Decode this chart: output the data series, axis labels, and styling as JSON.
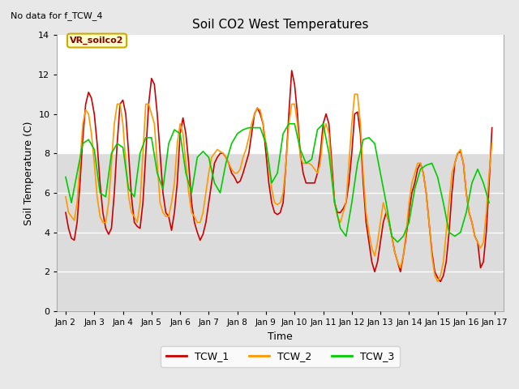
{
  "title": "Soil CO2 West Temperatures",
  "xlabel": "Time",
  "ylabel": "Soil Temperature (C)",
  "note": "No data for f_TCW_4",
  "annotation": "VR_soilco2",
  "ylim": [
    0,
    14
  ],
  "fig_bg_color": "#e8e8e8",
  "plot_bg_color": "#e8e8e8",
  "upper_bg_color": "#ffffff",
  "lower_bg_color": "#dcdcdc",
  "grid_color": "#ffffff",
  "series": {
    "TCW_1": {
      "color": "#cc0000",
      "linewidth": 1.2,
      "t": [
        0.0,
        0.1,
        0.2,
        0.3,
        0.4,
        0.5,
        0.6,
        0.7,
        0.8,
        0.9,
        1.0,
        1.1,
        1.2,
        1.3,
        1.4,
        1.5,
        1.6,
        1.7,
        1.8,
        1.9,
        2.0,
        2.1,
        2.2,
        2.3,
        2.4,
        2.5,
        2.6,
        2.7,
        2.8,
        2.9,
        3.0,
        3.1,
        3.2,
        3.3,
        3.4,
        3.5,
        3.6,
        3.7,
        3.8,
        3.9,
        4.0,
        4.1,
        4.2,
        4.3,
        4.4,
        4.5,
        4.6,
        4.7,
        4.8,
        4.9,
        5.0,
        5.1,
        5.2,
        5.3,
        5.4,
        5.5,
        5.6,
        5.7,
        5.8,
        5.9,
        6.0,
        6.1,
        6.2,
        6.3,
        6.4,
        6.5,
        6.6,
        6.7,
        6.8,
        6.9,
        7.0,
        7.1,
        7.2,
        7.3,
        7.4,
        7.5,
        7.6,
        7.7,
        7.8,
        7.9,
        8.0,
        8.1,
        8.2,
        8.3,
        8.4,
        8.5,
        8.6,
        8.7,
        8.8,
        8.9,
        9.0,
        9.1,
        9.2,
        9.3,
        9.4,
        9.5,
        9.6,
        9.7,
        9.8,
        9.9,
        10.0,
        10.1,
        10.2,
        10.3,
        10.4,
        10.5,
        10.6,
        10.7,
        10.8,
        10.9,
        11.0,
        11.1,
        11.2,
        11.3,
        11.4,
        11.5,
        11.6,
        11.7,
        11.8,
        11.9,
        12.0,
        12.1,
        12.2,
        12.3,
        12.4,
        12.5,
        12.6,
        12.7,
        12.8,
        12.9,
        13.0,
        13.1,
        13.2,
        13.3,
        13.4,
        13.5,
        13.6,
        13.7,
        13.8,
        13.9,
        14.0,
        14.1,
        14.2,
        14.3,
        14.4,
        14.5,
        14.6,
        14.7,
        14.8,
        14.9
      ],
      "v": [
        5.0,
        4.2,
        3.7,
        3.6,
        4.5,
        6.5,
        8.8,
        10.5,
        11.1,
        10.8,
        10.0,
        8.5,
        6.5,
        5.0,
        4.2,
        3.9,
        4.2,
        6.0,
        8.5,
        10.5,
        10.7,
        10.0,
        8.0,
        5.8,
        4.5,
        4.3,
        4.2,
        5.5,
        8.0,
        10.5,
        11.8,
        11.5,
        10.0,
        8.0,
        6.0,
        5.0,
        4.8,
        4.1,
        5.0,
        6.5,
        9.0,
        9.8,
        9.0,
        7.5,
        5.5,
        4.5,
        4.0,
        3.6,
        3.9,
        4.5,
        5.5,
        6.5,
        7.5,
        7.8,
        8.0,
        8.0,
        7.8,
        7.5,
        7.0,
        6.8,
        6.5,
        6.6,
        7.0,
        7.5,
        8.0,
        9.0,
        10.0,
        10.3,
        10.0,
        9.5,
        8.0,
        6.5,
        5.5,
        5.0,
        4.9,
        5.0,
        5.5,
        7.5,
        10.0,
        12.2,
        11.5,
        10.0,
        8.0,
        7.0,
        6.5,
        6.5,
        6.5,
        6.5,
        7.0,
        8.0,
        9.5,
        10.0,
        9.5,
        7.5,
        5.5,
        5.0,
        5.0,
        5.2,
        5.5,
        6.5,
        8.0,
        10.0,
        10.1,
        9.0,
        6.5,
        4.5,
        3.5,
        2.5,
        2.0,
        2.5,
        3.5,
        4.5,
        5.0,
        4.5,
        3.8,
        3.0,
        2.5,
        2.0,
        2.8,
        3.8,
        5.0,
        6.0,
        6.5,
        7.2,
        7.5,
        7.0,
        6.0,
        4.5,
        3.0,
        2.0,
        1.7,
        1.5,
        1.8,
        2.5,
        4.0,
        6.0,
        7.5,
        8.0,
        8.1,
        7.5,
        6.0,
        5.0,
        4.5,
        3.8,
        3.5,
        2.2,
        2.5,
        4.0,
        6.5,
        9.3
      ]
    },
    "TCW_2": {
      "color": "#ff9900",
      "linewidth": 1.2,
      "t": [
        0.0,
        0.1,
        0.2,
        0.3,
        0.4,
        0.5,
        0.6,
        0.7,
        0.8,
        0.9,
        1.0,
        1.1,
        1.2,
        1.3,
        1.4,
        1.5,
        1.6,
        1.7,
        1.8,
        1.9,
        2.0,
        2.1,
        2.2,
        2.3,
        2.4,
        2.5,
        2.6,
        2.7,
        2.8,
        2.9,
        3.0,
        3.1,
        3.2,
        3.3,
        3.4,
        3.5,
        3.6,
        3.7,
        3.8,
        3.9,
        4.0,
        4.1,
        4.2,
        4.3,
        4.4,
        4.5,
        4.6,
        4.7,
        4.8,
        4.9,
        5.0,
        5.1,
        5.2,
        5.3,
        5.4,
        5.5,
        5.6,
        5.7,
        5.8,
        5.9,
        6.0,
        6.1,
        6.2,
        6.3,
        6.4,
        6.5,
        6.6,
        6.7,
        6.8,
        6.9,
        7.0,
        7.1,
        7.2,
        7.3,
        7.4,
        7.5,
        7.6,
        7.7,
        7.8,
        7.9,
        8.0,
        8.1,
        8.2,
        8.3,
        8.4,
        8.5,
        8.6,
        8.7,
        8.8,
        8.9,
        9.0,
        9.1,
        9.2,
        9.3,
        9.4,
        9.5,
        9.6,
        9.7,
        9.8,
        9.9,
        10.0,
        10.1,
        10.2,
        10.3,
        10.4,
        10.5,
        10.6,
        10.7,
        10.8,
        10.9,
        11.0,
        11.1,
        11.2,
        11.3,
        11.4,
        11.5,
        11.6,
        11.7,
        11.8,
        11.9,
        12.0,
        12.1,
        12.2,
        12.3,
        12.4,
        12.5,
        12.6,
        12.7,
        12.8,
        12.9,
        13.0,
        13.1,
        13.2,
        13.3,
        13.4,
        13.5,
        13.6,
        13.7,
        13.8,
        13.9,
        14.0,
        14.1,
        14.2,
        14.3,
        14.4,
        14.5,
        14.6,
        14.7,
        14.8,
        14.9
      ],
      "v": [
        5.8,
        5.0,
        4.8,
        4.6,
        5.5,
        7.5,
        9.5,
        10.2,
        10.0,
        9.0,
        7.5,
        5.8,
        4.8,
        4.5,
        4.5,
        5.5,
        7.5,
        9.5,
        10.5,
        10.5,
        9.5,
        7.5,
        5.8,
        5.0,
        4.8,
        4.5,
        5.5,
        8.0,
        10.5,
        10.5,
        10.0,
        9.5,
        7.5,
        5.5,
        5.0,
        4.8,
        4.8,
        5.5,
        6.5,
        8.5,
        9.5,
        9.0,
        7.5,
        6.0,
        5.0,
        4.8,
        4.5,
        4.5,
        5.0,
        6.0,
        7.0,
        7.8,
        8.0,
        8.2,
        8.1,
        8.0,
        7.8,
        7.5,
        7.2,
        7.0,
        7.0,
        7.2,
        7.8,
        8.2,
        8.8,
        9.5,
        10.0,
        10.3,
        10.2,
        9.5,
        8.5,
        7.5,
        6.2,
        5.5,
        5.4,
        5.5,
        6.0,
        7.5,
        9.5,
        10.5,
        10.5,
        9.5,
        7.8,
        7.5,
        7.5,
        7.5,
        7.4,
        7.2,
        7.0,
        7.5,
        9.0,
        9.5,
        9.0,
        7.0,
        5.5,
        4.8,
        4.5,
        5.0,
        5.5,
        7.5,
        9.5,
        11.0,
        11.0,
        9.5,
        7.0,
        5.0,
        4.0,
        3.2,
        2.8,
        3.5,
        4.5,
        5.5,
        5.0,
        4.5,
        3.8,
        3.0,
        2.5,
        2.2,
        2.8,
        4.0,
        5.5,
        6.5,
        7.0,
        7.5,
        7.5,
        7.0,
        6.0,
        4.5,
        2.8,
        1.8,
        1.5,
        1.8,
        2.5,
        4.0,
        5.5,
        7.0,
        7.5,
        8.0,
        8.2,
        7.5,
        6.0,
        5.0,
        4.5,
        3.8,
        3.5,
        3.2,
        3.5,
        5.0,
        7.0,
        8.5
      ]
    },
    "TCW_3": {
      "color": "#00cc00",
      "linewidth": 1.2,
      "t": [
        0.0,
        0.2,
        0.4,
        0.6,
        0.8,
        1.0,
        1.2,
        1.4,
        1.6,
        1.8,
        2.0,
        2.2,
        2.4,
        2.6,
        2.8,
        3.0,
        3.2,
        3.4,
        3.6,
        3.8,
        4.0,
        4.2,
        4.4,
        4.6,
        4.8,
        5.0,
        5.2,
        5.4,
        5.6,
        5.8,
        6.0,
        6.2,
        6.4,
        6.6,
        6.8,
        7.0,
        7.2,
        7.4,
        7.6,
        7.8,
        8.0,
        8.2,
        8.4,
        8.6,
        8.8,
        9.0,
        9.2,
        9.4,
        9.6,
        9.8,
        10.0,
        10.2,
        10.4,
        10.6,
        10.8,
        11.0,
        11.2,
        11.4,
        11.6,
        11.8,
        12.0,
        12.2,
        12.4,
        12.6,
        12.8,
        13.0,
        13.2,
        13.4,
        13.6,
        13.8,
        14.0,
        14.2,
        14.4,
        14.6,
        14.8
      ],
      "v": [
        6.8,
        5.5,
        7.0,
        8.5,
        8.7,
        8.2,
        6.0,
        5.8,
        8.0,
        8.5,
        8.3,
        6.2,
        5.8,
        8.0,
        8.8,
        8.8,
        7.0,
        6.2,
        8.5,
        9.2,
        9.0,
        7.0,
        6.0,
        7.8,
        8.1,
        7.8,
        6.5,
        6.0,
        7.5,
        8.5,
        9.0,
        9.2,
        9.3,
        9.3,
        9.3,
        8.5,
        6.5,
        7.0,
        9.0,
        9.5,
        9.5,
        8.2,
        7.5,
        7.7,
        9.2,
        9.5,
        8.0,
        5.5,
        4.2,
        3.8,
        5.5,
        7.5,
        8.7,
        8.8,
        8.5,
        7.0,
        5.5,
        3.8,
        3.5,
        3.8,
        4.5,
        6.2,
        7.2,
        7.4,
        7.5,
        6.8,
        5.5,
        4.0,
        3.8,
        4.0,
        5.0,
        6.5,
        7.2,
        6.5,
        5.5
      ]
    }
  },
  "legend_labels": [
    "TCW_1",
    "TCW_2",
    "TCW_3"
  ],
  "legend_colors": [
    "#cc0000",
    "#ff9900",
    "#00cc00"
  ],
  "xtick_labels": [
    "Jan 2",
    "Jan 3",
    "Jan 4",
    "Jan 5",
    "Jan 6",
    "Jan 7",
    "Jan 8",
    "Jan 9",
    "Jan 10",
    "Jan 11",
    "Jan 12",
    "Jan 13",
    "Jan 14",
    "Jan 15",
    "Jan 16",
    "Jan 17"
  ],
  "xtick_positions": [
    0,
    1,
    2,
    3,
    4,
    5,
    6,
    7,
    8,
    9,
    10,
    11,
    12,
    13,
    14,
    15
  ],
  "ytick_labels": [
    "0",
    "2",
    "4",
    "6",
    "8",
    "10",
    "12",
    "14"
  ],
  "ytick_positions": [
    0,
    2,
    4,
    6,
    8,
    10,
    12,
    14
  ]
}
